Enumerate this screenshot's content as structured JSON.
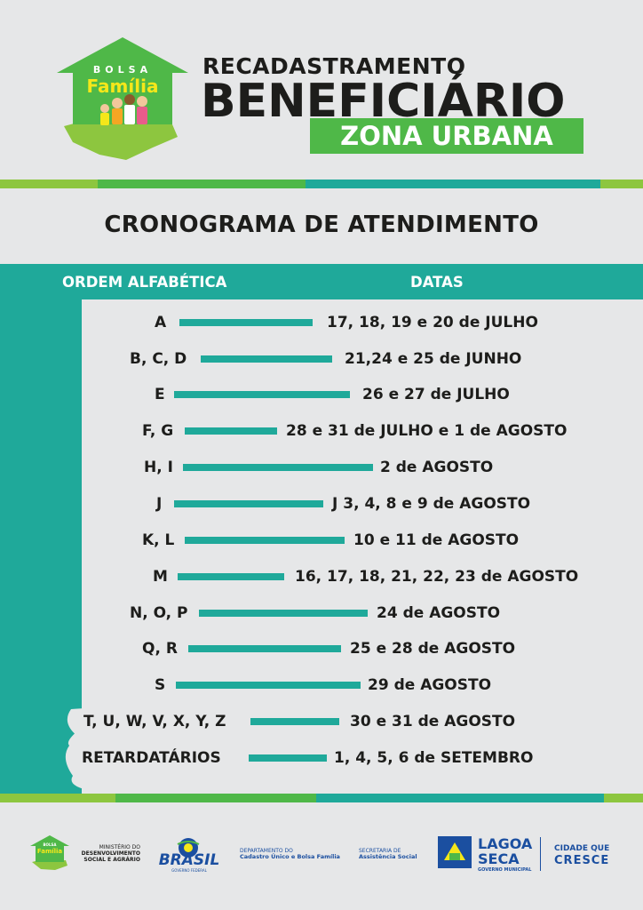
{
  "header": {
    "logo_top": "BOLSA",
    "logo_bottom": "Família",
    "title_line1": "RECADASTRAMENTO",
    "title_line2": "BENEFICIÁRIO",
    "title_line3": "ZONA URBANA"
  },
  "schedule": {
    "title": "CRONOGRAMA DE ATENDIMENTO",
    "col_order": "ORDEM ALFABÉTICA",
    "col_dates": "DATAS",
    "rows": [
      {
        "letters": "A",
        "date": "17, 18, 19 e 20 de JULHO"
      },
      {
        "letters": "B, C, D",
        "date": "21,24 e 25 de JUNHO"
      },
      {
        "letters": "E",
        "date": "26 e 27 de JULHO"
      },
      {
        "letters": "F, G",
        "date": "28 e 31 de JULHO e 1 de AGOSTO"
      },
      {
        "letters": "H, I",
        "date": "2 de AGOSTO"
      },
      {
        "letters": "J",
        "date": "J 3, 4, 8 e 9 de AGOSTO"
      },
      {
        "letters": "K, L",
        "date": "10 e 11 de AGOSTO"
      },
      {
        "letters": "M",
        "date": "16, 17, 18, 21, 22, 23 de AGOSTO"
      },
      {
        "letters": "N, O, P",
        "date": "24 de AGOSTO"
      },
      {
        "letters": "Q, R",
        "date": "25 e 28 de AGOSTO"
      },
      {
        "letters": "S",
        "date": "29 de AGOSTO"
      },
      {
        "letters": "T, U, W, V, X, Y, Z",
        "date": "30 e 31 de AGOSTO"
      },
      {
        "letters": "RETARDATÁRIOS",
        "date": "1, 4, 5, 6 de SETEMBRO"
      }
    ]
  },
  "footer": {
    "logo_top": "BOLSA",
    "logo_bottom": "Família",
    "ministry_line1": "MINISTÉRIO DO",
    "ministry_line2": "DESENVOLVIMENTO",
    "ministry_line3": "SOCIAL E AGRÁRIO",
    "brasil": "BRASIL",
    "brasil_sub": "GOVERNO FEDERAL",
    "dept_line1": "DEPARTAMENTO DO",
    "dept_line2": "Cadastro Único e Bolsa Família",
    "sec_line1": "SECRETARIA DE",
    "sec_line2": "Assistência Social",
    "city_line1": "LAGOA",
    "city_line2": "SECA",
    "city_sub": "GOVERNO MUNICIPAL",
    "slogan_line1": "CIDADE QUE",
    "slogan_line2": "CRESCE"
  },
  "colors": {
    "teal": "#1fa99a",
    "green": "#4fb848",
    "lime": "#8dc63f",
    "yellow": "#f5e71a",
    "text": "#1d1d1b",
    "background": "#e6e7e8"
  }
}
